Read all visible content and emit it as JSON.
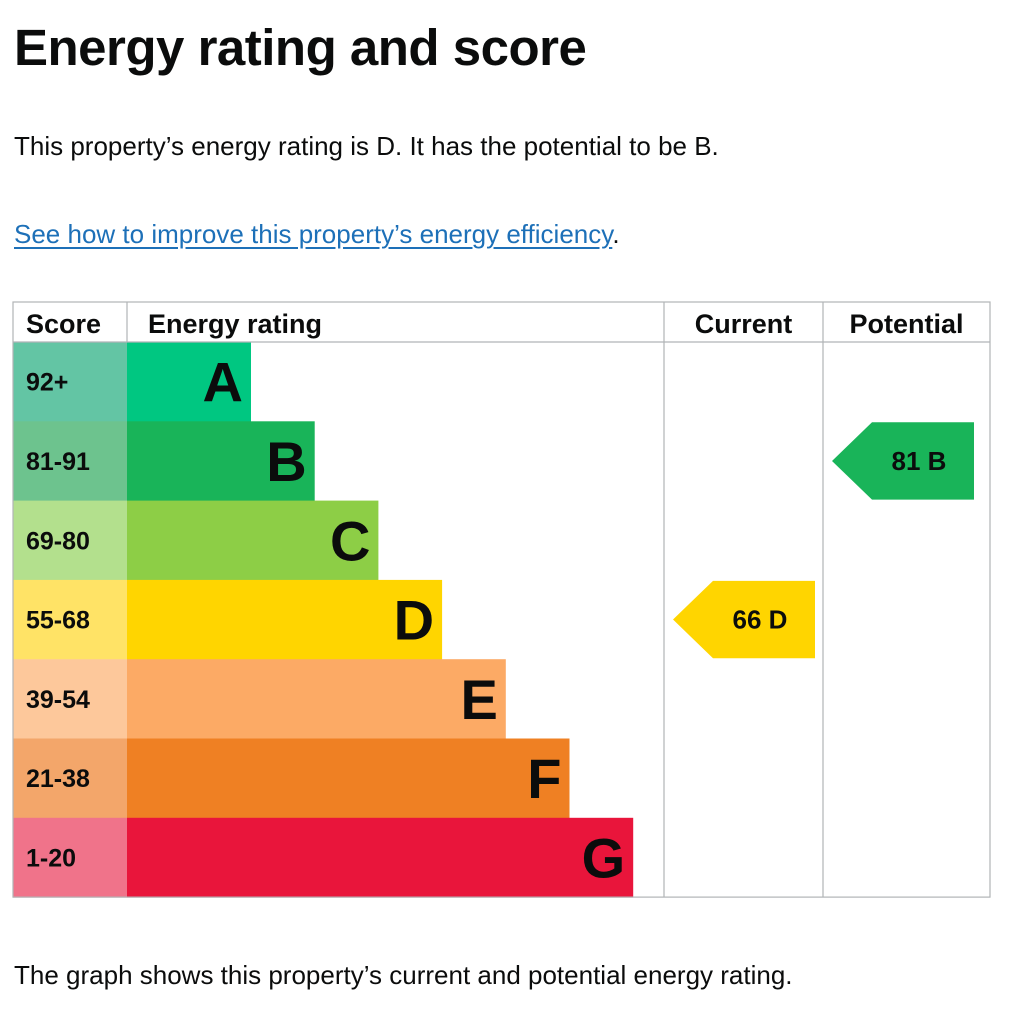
{
  "heading": "Energy rating and score",
  "summary": "This property’s energy rating is D. It has the potential to be B.",
  "improve_link": "See how to improve this property’s energy efficiency",
  "improve_suffix": ".",
  "footnote": "The graph shows this property’s current and potential energy rating.",
  "chart_data": {
    "type": "bar",
    "headers": {
      "score": "Score",
      "rating": "Energy rating",
      "current": "Current",
      "potential": "Potential"
    },
    "bands": [
      {
        "letter": "A",
        "range": "92+",
        "color": "#00c781",
        "score_bg": "#63c5a4"
      },
      {
        "letter": "B",
        "range": "81-91",
        "color": "#19b459",
        "score_bg": "#6dc38e"
      },
      {
        "letter": "C",
        "range": "69-80",
        "color": "#8dce46",
        "score_bg": "#b3e08d"
      },
      {
        "letter": "D",
        "range": "55-68",
        "color": "#ffd500",
        "score_bg": "#ffe366"
      },
      {
        "letter": "E",
        "range": "39-54",
        "color": "#fcaa65",
        "score_bg": "#fdc89b"
      },
      {
        "letter": "F",
        "range": "21-38",
        "color": "#ef8023",
        "score_bg": "#f3a66a"
      },
      {
        "letter": "G",
        "range": "1-20",
        "color": "#e9153b",
        "score_bg": "#f0738a"
      }
    ],
    "current": {
      "score": 66,
      "band": "D",
      "label": "66 D",
      "color": "#ffd500"
    },
    "potential": {
      "score": 81,
      "band": "B",
      "label": "81 B",
      "color": "#19b459"
    }
  }
}
